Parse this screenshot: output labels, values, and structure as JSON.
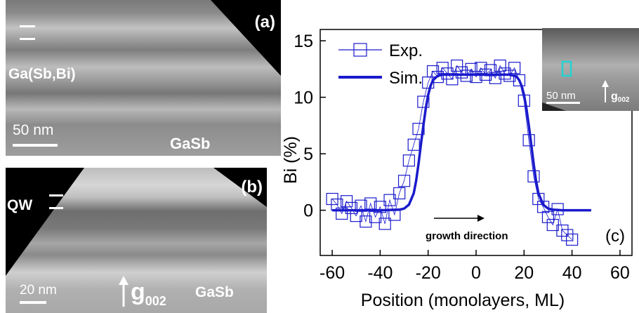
{
  "panel_a": {
    "label": "(a)",
    "layer_label": "Ga(Sb,Bi)",
    "substrate_label": "GaSb",
    "scale_label": "50 nm"
  },
  "panel_b": {
    "label": "(b)",
    "qw_label": "QW",
    "substrate_label": "GaSb",
    "scale_label": "20 nm",
    "vector_label": "g",
    "vector_sub": "002"
  },
  "inset": {
    "scale_label": "50 nm",
    "vector_label": "g",
    "vector_sub": "002"
  },
  "chart_data": {
    "type": "scatter",
    "panel_label": "(c)",
    "xlabel": "Position (monolayers, ML)",
    "ylabel": "Bi (%)",
    "xlim": [
      -65,
      65
    ],
    "ylim": [
      -4,
      16
    ],
    "xticks": [
      -60,
      -40,
      -20,
      0,
      20,
      40,
      60
    ],
    "yticks": [
      0,
      5,
      10,
      15
    ],
    "annotation": "growth direction",
    "legend_position": "top-left",
    "colors": {
      "series": "#1a1acc"
    },
    "series": [
      {
        "name": "Exp.",
        "style": "open-square-markers",
        "x": [
          -60,
          -58,
          -56,
          -54,
          -52,
          -50,
          -48,
          -46,
          -44,
          -42,
          -40,
          -38,
          -36,
          -34,
          -32,
          -30,
          -28,
          -26,
          -24,
          -22,
          -20,
          -18,
          -16,
          -14,
          -12,
          -10,
          -8,
          -6,
          -4,
          -2,
          0,
          2,
          4,
          6,
          8,
          10,
          12,
          14,
          16,
          18,
          20,
          22,
          24,
          26,
          28,
          30,
          32,
          34,
          36,
          38,
          40
        ],
        "y": [
          1.0,
          0.5,
          -0.3,
          0.8,
          0.2,
          -0.5,
          0.4,
          -1.0,
          0.6,
          -0.6,
          0.3,
          -1.2,
          0.9,
          -0.4,
          1.5,
          2.6,
          4.4,
          5.8,
          7.2,
          9.6,
          11.3,
          12.3,
          11.8,
          12.6,
          12.1,
          11.6,
          12.8,
          12.2,
          11.9,
          12.5,
          11.8,
          12.6,
          12.0,
          12.4,
          11.7,
          12.8,
          12.1,
          11.9,
          12.6,
          11.5,
          9.7,
          6.2,
          3.0,
          1.0,
          0.3,
          -0.6,
          -1.3,
          0.1,
          -1.8,
          -2.2,
          -2.6
        ]
      },
      {
        "name": "Sim.",
        "style": "line",
        "x": [
          -60,
          -50,
          -40,
          -32,
          -30,
          -28,
          -26,
          -25,
          -24,
          -23,
          -22,
          -21,
          -20,
          -19,
          -18,
          -16,
          -14,
          -10,
          0,
          10,
          14,
          16,
          17,
          18,
          19,
          20,
          21,
          22,
          23,
          24,
          25,
          26,
          28,
          30,
          32,
          36,
          40,
          48
        ],
        "y": [
          0,
          0,
          0,
          0.05,
          0.15,
          0.5,
          1.5,
          2.6,
          4.1,
          5.8,
          7.5,
          9.0,
          10.2,
          11.0,
          11.5,
          11.9,
          12.0,
          12.0,
          12.0,
          12.0,
          12.0,
          11.9,
          11.8,
          11.5,
          11.0,
          10.2,
          9.0,
          7.5,
          5.8,
          4.1,
          2.6,
          1.5,
          0.5,
          0.15,
          0.05,
          0,
          0,
          0
        ]
      }
    ]
  }
}
